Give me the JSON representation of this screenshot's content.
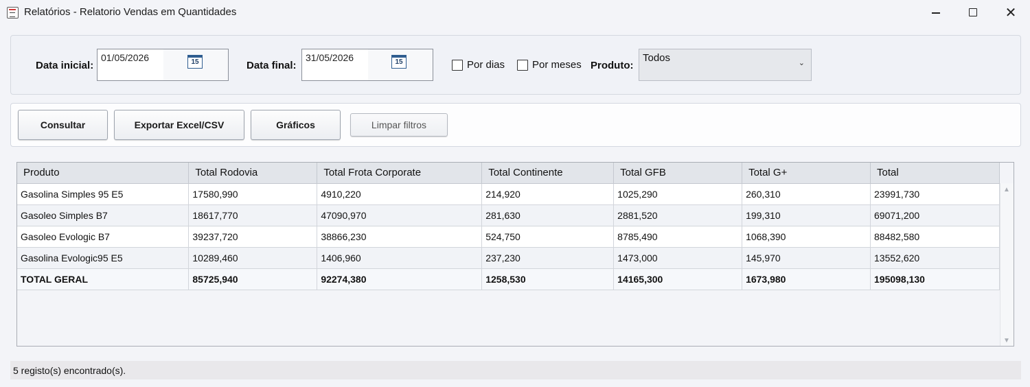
{
  "window": {
    "title": "Relatórios - Relatorio Vendas em Quantidades",
    "min_icon": "minimize-icon",
    "max_icon": "maximize-icon",
    "close_icon": "close-icon",
    "close_glyph": "✕"
  },
  "filters": {
    "start_label": "Data inicial:",
    "start_value": "01/05/2026",
    "end_label": "Data final:",
    "end_value": "31/05/2026",
    "calendar_day": "15",
    "by_days_label": "Por dias",
    "by_days_checked": false,
    "by_months_label": "Por meses",
    "by_months_checked": false,
    "product_label": "Produto:",
    "product_value": "Todos",
    "dropdown_glyph": "⌄"
  },
  "buttons": {
    "query": "Consultar",
    "export": "Exportar Excel/CSV",
    "charts": "Gráficos",
    "clear": "Limpar filtros"
  },
  "table": {
    "columns": [
      "Produto",
      "Total Rodovia",
      "Total Frota Corporate",
      "Total Continente",
      "Total GFB",
      "Total G+",
      "Total"
    ],
    "rows": [
      [
        "Gasolina Simples 95 E5",
        "17580,990",
        "4910,220",
        "214,920",
        "1025,290",
        "260,310",
        "23991,730"
      ],
      [
        "Gasoleo Simples B7",
        "18617,770",
        "47090,970",
        "281,630",
        "2881,520",
        "199,310",
        "69071,200"
      ],
      [
        "Gasoleo Evologic B7",
        "39237,720",
        "38866,230",
        "524,750",
        "8785,490",
        "1068,390",
        "88482,580"
      ],
      [
        "Gasolina Evologic95 E5",
        "10289,460",
        "1406,960",
        "237,230",
        "1473,000",
        "145,970",
        "13552,620"
      ],
      [
        "TOTAL GERAL",
        "85725,940",
        "92274,380",
        "1258,530",
        "14165,300",
        "1673,980",
        "195098,130"
      ]
    ]
  },
  "status": {
    "text": "5 registo(s) encontrado(s)."
  },
  "colors": {
    "background": "#f3f4f8",
    "header_bg": "#e2e5ea",
    "calendar_accent": "#2f5d90"
  }
}
